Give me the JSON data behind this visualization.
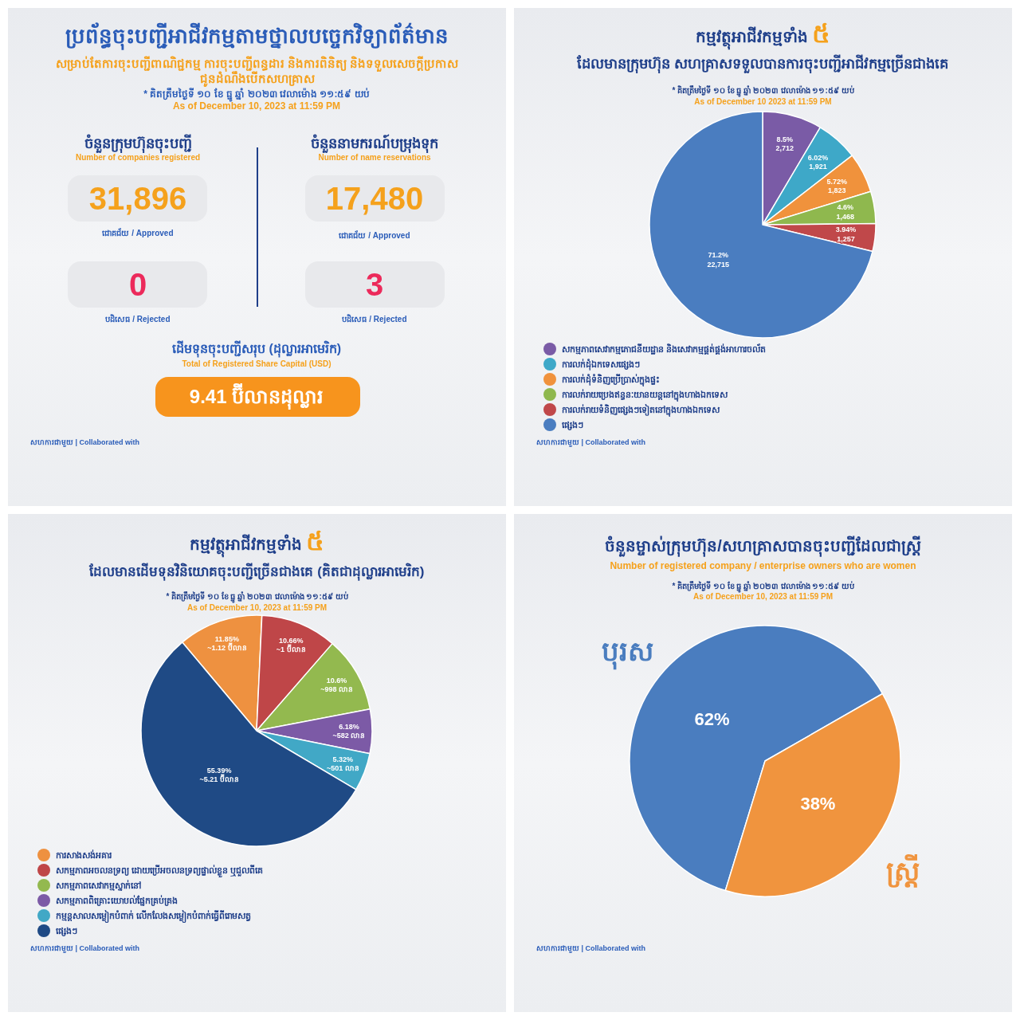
{
  "chart_data": [
    {
      "type": "other",
      "title": "ប្រព័ន្ធចុះបញ្ជីអាជីវកម្មតាមថ្នាលបច្ចេកវិទ្យាព័ត៌មាន",
      "subtitle": "សម្រាប់តែការចុះបញ្ជីពាណិជ្ជកម្ម ការចុះបញ្ជីពន្ធដារ និងការពិនិត្យ និងទទួលសេចក្តីប្រកាស ជូនដំណឹងបើកសហគ្រាស",
      "annotations": [
        "* គិតត្រឹមថ្ងៃទី ១០ ខែ ធ្នូ ឆ្នាំ ២០២៣ វេលាម៉ោង ១១:៥៩ យប់",
        "As of December 10, 2023 at 11:59 PM",
        "ចំនួនក្រុមហ៊ុនចុះបញ្ជី",
        "Number of companies registered",
        "31,896",
        "ជោគជ័យ / Approved",
        "0",
        "បដិសេធ / Rejected",
        "ចំនួននាមករណ៍បម្រុងទុក",
        "Number of name reservations",
        "17,480",
        "ជោគជ័យ / Approved",
        "3",
        "បដិសេធ / Rejected",
        "ដើមទុនចុះបញ្ជីសរុប (ដុល្លារអាមេរិក)",
        "Total of Registered Share Capital (USD)",
        "9.41 ប៊ីលានដុល្លារ",
        "សហការជាមួយ | Collaborated with"
      ]
    },
    {
      "type": "pie",
      "title": "កម្មវត្ថុអាជីវកម្មទាំង ៥",
      "subtitle": "ដែលមានក្រុមហ៊ុន សហគ្រាសទទួលបានការចុះបញ្ជីអាជីវកម្មច្រើនជាងគេ",
      "annotations": [
        "* គិតត្រឹមថ្ងៃទី ១០ ខែ ធ្នូ ឆ្នាំ ២០២៣ វេលាម៉ោង ១១:៥៩ យប់",
        "As of December 10 2023 at 11:59 PM",
        "សហការជាមួយ | Collaborated with"
      ],
      "categories": [
        "សកម្មភាពសេវាកម្មភោជនីយដ្ឋាន និងសេវាកម្មផ្គត់ផ្គង់អាហារចល័ត",
        "ការលក់ដុំឯកទេសផ្សេងៗ",
        "ការលក់ដុំទំនិញប្រើប្រាស់ក្នុងផ្ទះ",
        "ការលក់រាយប្រេងឥន្ធនៈយានយន្តនៅក្នុងហាងឯកទេស",
        "ការលក់រាយទំនិញផ្សេងៗទៀតនៅក្នុងហាងឯកទេស",
        "ផ្សេងៗ"
      ],
      "values": [
        2712,
        1921,
        1823,
        1468,
        1257,
        22715
      ],
      "colors": [
        "#7a5ba6",
        "#3ea8c8",
        "#f0923c",
        "#8fb84e",
        "#c0484a",
        "#4a7dc0"
      ],
      "value_labels": [
        "8.5%\n2,712",
        "6.02%\n1,921",
        "5.72%\n1,823",
        "4.6%\n1,468",
        "3.94%\n1,257",
        "71.2%\n22,715"
      ],
      "legend": "bottom left"
    },
    {
      "type": "pie",
      "title": "កម្មវត្ថុអាជីវកម្មទាំង ៥",
      "subtitle": "ដែលមានដើមទុនវិនិយោគចុះបញ្ជីច្រើនជាងគេ (គិតជាដុល្លារអាមេរិក)",
      "annotations": [
        "* គិតត្រឹមថ្ងៃទី ១០ ខែ ធ្នូ ឆ្នាំ ២០២៣ វេលាម៉ោង ១១:៥៩ យប់",
        "As of December 10, 2023 at 11:59 PM",
        "សហការជាមួយ | Collaborated with"
      ],
      "categories": [
        "ការសាងសង់អគារ",
        "សកម្មភាពអចលនទ្រព្យ ដោយប្រើអចលនទ្រព្យផ្ទាល់ខ្លួន ឬជួលពីគេ",
        "សកម្មភាពសេវាកម្មស្នាក់នៅ",
        "សកម្មភាពពិគ្រោះយោបល់ផ្នែកគ្រប់គ្រង",
        "កម្មន្តសាលសម្លៀកបំពាក់ លើកលែងសម្លៀកបំពាក់ធ្វើពីរោមសត្វ",
        "ផ្សេងៗ"
      ],
      "values": [
        11.85,
        10.66,
        10.6,
        6.18,
        5.32,
        55.39
      ],
      "colors": [
        "#ee9140",
        "#bf4648",
        "#93b94f",
        "#7c5aa6",
        "#41a8c6",
        "#1f4a85"
      ],
      "value_labels": [
        "11.85%\n~1.12 ប៊ីលាន",
        "10.66%\n~1 ប៊ីលាន",
        "10.6%\n~998 លាន",
        "6.18%\n~582 លាន",
        "5.32%\n~501 លាន",
        "55.39%\n~5.21 ប៊ីលាន"
      ],
      "legend": "bottom left"
    },
    {
      "type": "pie",
      "title": "ចំនួនម្ចាស់ក្រុមហ៊ុន/សហគ្រាសបានចុះបញ្ជីដែលជាស្ត្រី",
      "subtitle": "Number of registered company / enterprise owners who are women",
      "annotations": [
        "* គិតត្រឹមថ្ងៃទី ១០ ខែ ធ្នូ ឆ្នាំ ២០២៣ វេលាម៉ោង ១១:៥៩ យប់",
        "As of December 10, 2023 at 11:59 PM",
        "សហការជាមួយ | Collaborated with"
      ],
      "categories": [
        "បុរស",
        "ស្ត្រី"
      ],
      "values": [
        62,
        38
      ],
      "colors": [
        "#4a7dbf",
        "#f0943e"
      ],
      "value_labels": [
        "62%",
        "38%"
      ]
    }
  ]
}
